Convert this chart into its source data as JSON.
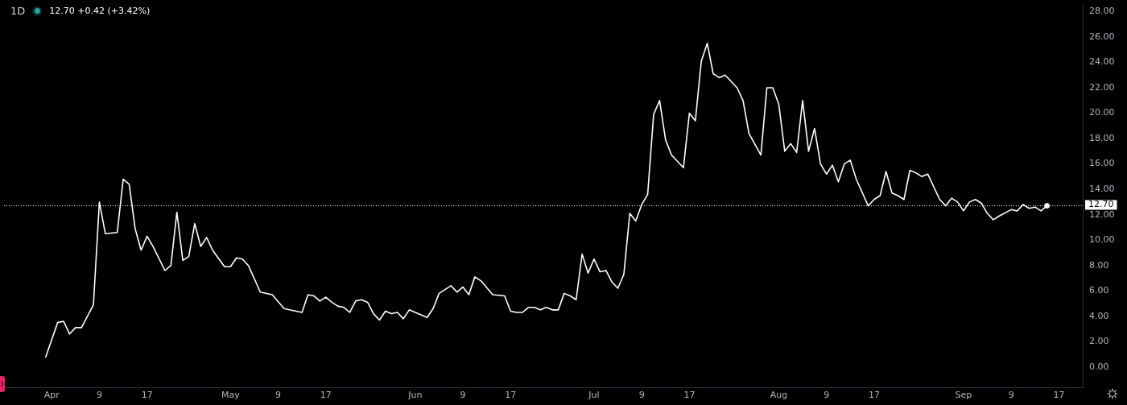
{
  "chart_data": {
    "type": "line",
    "title": "1D",
    "subtitle": "12.70 +0.42 (+3.42%)",
    "x": [
      "--03-31",
      "--04-02",
      "--04-03",
      "--04-04",
      "--04-05",
      "--04-06",
      "--04-08",
      "--04-09",
      "--04-10",
      "--04-12",
      "--04-13",
      "--04-14",
      "--04-15",
      "--04-16",
      "--04-17",
      "--04-18",
      "--04-20",
      "--04-21",
      "--04-22",
      "--04-23",
      "--04-24",
      "--04-25",
      "--04-26",
      "--04-27",
      "--04-28",
      "--04-30",
      "--05-01",
      "--05-02",
      "--05-03",
      "--05-04",
      "--05-06",
      "--05-08",
      "--05-10",
      "--05-12",
      "--05-13",
      "--05-14",
      "--05-15",
      "--05-16",
      "--05-17",
      "--05-18",
      "--05-19",
      "--05-20",
      "--05-21",
      "--05-22",
      "--05-23",
      "--05-24",
      "--05-25",
      "--05-26",
      "--05-27",
      "--05-28",
      "--05-29",
      "--05-30",
      "--05-31",
      "--06-01",
      "--06-03",
      "--06-04",
      "--06-05",
      "--06-07",
      "--06-08",
      "--06-09",
      "--06-10",
      "--06-11",
      "--06-12",
      "--06-14",
      "--06-16",
      "--06-17",
      "--06-18",
      "--06-19",
      "--06-20",
      "--06-21",
      "--06-22",
      "--06-23",
      "--06-24",
      "--06-25",
      "--06-26",
      "--06-27",
      "--06-28",
      "--06-29",
      "--06-30",
      "--07-01",
      "--07-02",
      "--07-03",
      "--07-04",
      "--07-05",
      "--07-06",
      "--07-07",
      "--07-08",
      "--07-09",
      "--07-10",
      "--07-11",
      "--07-12",
      "--07-13",
      "--07-14",
      "--07-16",
      "--07-17",
      "--07-18",
      "--07-19",
      "--07-20",
      "--07-21",
      "--07-22",
      "--07-23",
      "--07-25",
      "--07-26",
      "--07-27",
      "--07-29",
      "--07-30",
      "--07-31",
      "--08-01",
      "--08-02",
      "--08-03",
      "--08-04",
      "--08-05",
      "--08-06",
      "--08-07",
      "--08-08",
      "--08-09",
      "--08-10",
      "--08-11",
      "--08-12",
      "--08-13",
      "--08-14",
      "--08-16",
      "--08-17",
      "--08-18",
      "--08-19",
      "--08-20",
      "--08-21",
      "--08-22",
      "--08-23",
      "--08-24",
      "--08-25",
      "--08-26",
      "--08-28",
      "--08-29",
      "--08-30",
      "--08-31",
      "--09-01",
      "--09-02",
      "--09-03",
      "--09-04",
      "--09-05",
      "--09-06",
      "--09-07",
      "--09-09",
      "--09-10",
      "--09-11",
      "--09-12",
      "--09-13",
      "--09-14",
      "--09-15"
    ],
    "series": [
      {
        "color": "#ffffff",
        "marker": "none",
        "values": [
          0.8,
          3.5,
          3.6,
          2.6,
          3.1,
          3.1,
          4.9,
          13.0,
          10.5,
          10.6,
          14.8,
          14.4,
          10.9,
          9.2,
          10.3,
          9.5,
          7.6,
          8.0,
          12.2,
          8.4,
          8.7,
          11.3,
          9.5,
          10.2,
          9.2,
          7.9,
          7.9,
          8.6,
          8.5,
          8.0,
          5.9,
          5.7,
          4.6,
          4.4,
          4.3,
          5.7,
          5.6,
          5.2,
          5.5,
          5.1,
          4.8,
          4.7,
          4.3,
          5.2,
          5.3,
          5.1,
          4.2,
          3.7,
          4.4,
          4.2,
          4.3,
          3.8,
          4.5,
          4.3,
          3.9,
          4.6,
          5.8,
          6.4,
          5.9,
          6.3,
          5.7,
          7.1,
          6.8,
          5.7,
          5.6,
          4.4,
          4.3,
          4.3,
          4.7,
          4.7,
          4.5,
          4.7,
          4.5,
          4.5,
          5.8,
          5.6,
          5.3,
          8.9,
          7.4,
          8.5,
          7.5,
          7.6,
          6.7,
          6.2,
          7.3,
          12.1,
          11.5,
          12.8,
          13.6,
          19.9,
          21.0,
          17.9,
          16.7,
          15.7,
          20.0,
          19.4,
          24.1,
          25.5,
          23.1,
          22.8,
          23.0,
          22.0,
          21.0,
          18.4,
          16.7,
          22.0,
          22.0,
          20.7,
          17.0,
          17.6,
          16.9,
          21.0,
          17.0,
          18.8,
          16.0,
          15.2,
          15.9,
          14.6,
          16.0,
          16.3,
          14.8,
          12.7,
          13.2,
          13.5,
          15.4,
          13.7,
          13.5,
          13.2,
          15.5,
          15.3,
          15.0,
          15.2,
          13.2,
          12.7,
          13.3,
          13.0,
          12.3,
          13.0,
          13.2,
          12.9,
          12.1,
          11.6,
          11.9,
          12.4,
          12.3,
          12.8,
          12.5,
          12.6,
          12.3,
          12.7
        ]
      },
      {
        "type": "scatter",
        "color": "#ffffff",
        "marker": "circle",
        "x": [
          "--09-15"
        ],
        "values": [
          12.7
        ]
      }
    ],
    "xlim": [
      "--03-24",
      "--09-21"
    ],
    "xticks": [
      {
        "value": "--04-01",
        "label": "Apr"
      },
      {
        "value": "--04-09",
        "label": "9"
      },
      {
        "value": "--04-17",
        "label": "17"
      },
      {
        "value": "--05-01",
        "label": "May"
      },
      {
        "value": "--05-09",
        "label": "9"
      },
      {
        "value": "--05-17",
        "label": "17"
      },
      {
        "value": "--06-01",
        "label": "Jun"
      },
      {
        "value": "--06-09",
        "label": "9"
      },
      {
        "value": "--06-17",
        "label": "17"
      },
      {
        "value": "--07-01",
        "label": "Jul"
      },
      {
        "value": "--07-09",
        "label": "9"
      },
      {
        "value": "--07-17",
        "label": "17"
      },
      {
        "value": "--08-01",
        "label": "Aug"
      },
      {
        "value": "--08-09",
        "label": "9"
      },
      {
        "value": "--08-17",
        "label": "17"
      },
      {
        "value": "--09-01",
        "label": "Sep"
      },
      {
        "value": "--09-09",
        "label": "9"
      },
      {
        "value": "--09-17",
        "label": "17"
      }
    ],
    "ylim": [
      -1.6,
      28.6
    ],
    "yticks": [
      {
        "value": 0,
        "label": "0.00"
      },
      {
        "value": 2,
        "label": "2.00"
      },
      {
        "value": 4,
        "label": "4.00"
      },
      {
        "value": 6,
        "label": "6.00"
      },
      {
        "value": 8,
        "label": "8.00"
      },
      {
        "value": 10,
        "label": "10.00"
      },
      {
        "value": 12,
        "label": "12.00"
      },
      {
        "value": 14,
        "label": "14.00"
      },
      {
        "value": 16,
        "label": "16.00"
      },
      {
        "value": 18,
        "label": "18.00"
      },
      {
        "value": 20,
        "label": "20.00"
      },
      {
        "value": 22,
        "label": "22.00"
      },
      {
        "value": 24,
        "label": "24.00"
      },
      {
        "value": 26,
        "label": "26.00"
      },
      {
        "value": 28,
        "label": "28.00"
      }
    ],
    "ref_lines": [
      {
        "axis": "y",
        "value": 12.7,
        "label": "12.70",
        "color": "#ffffff",
        "line_style": "dotted"
      }
    ]
  }
}
